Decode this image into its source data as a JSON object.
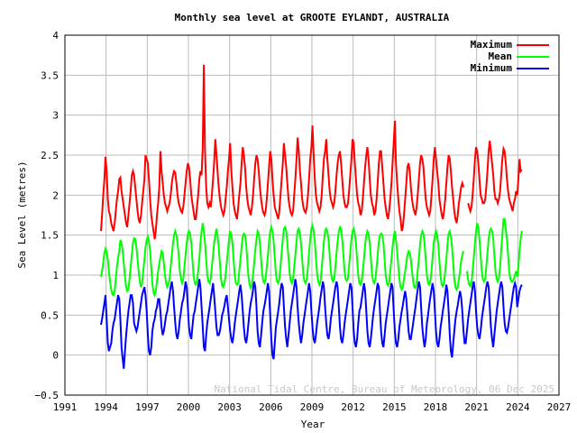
{
  "chart_data": {
    "type": "line",
    "title": "Monthly sea level at GROOTE EYLANDT, AUSTRALIA",
    "xlabel": "Year",
    "ylabel": "Sea Level (metres)",
    "xlim": [
      1991,
      2027
    ],
    "ylim": [
      -0.5,
      4
    ],
    "x_ticks": [
      "1991",
      "1994",
      "1997",
      "2000",
      "2003",
      "2006",
      "2009",
      "2012",
      "2015",
      "2018",
      "2021",
      "2024",
      "2027"
    ],
    "y_ticks": [
      "−0.5",
      "0",
      "0.5",
      "1",
      "1.5",
      "2",
      "2.5",
      "3",
      "3.5",
      "4"
    ],
    "grid": true,
    "legend_position": "top-right",
    "footer": "National Tidal Centre, Bureau of Meteorology, 06 Dec 2025",
    "start_month": "1993-08",
    "interval": "monthly",
    "series": [
      {
        "name": "Maximum",
        "color": "#ff0000",
        "values": [
          1.55,
          1.75,
          2.0,
          2.2,
          2.48,
          2.3,
          1.95,
          1.8,
          1.75,
          1.65,
          1.6,
          1.55,
          1.65,
          1.8,
          1.95,
          2.05,
          2.2,
          2.22,
          2.05,
          1.95,
          1.85,
          1.75,
          1.65,
          1.6,
          1.75,
          1.9,
          2.05,
          2.25,
          2.3,
          2.25,
          2.1,
          1.95,
          1.8,
          1.7,
          1.65,
          1.75,
          1.9,
          2.05,
          2.2,
          2.5,
          2.45,
          2.4,
          2.2,
          1.95,
          1.75,
          1.65,
          1.55,
          1.45,
          1.55,
          1.75,
          1.9,
          2.1,
          2.55,
          2.3,
          2.15,
          2.0,
          1.9,
          1.85,
          1.8,
          1.85,
          1.9,
          2.0,
          2.15,
          2.25,
          2.3,
          2.28,
          2.15,
          2.0,
          1.9,
          1.85,
          1.8,
          1.78,
          1.85,
          2.0,
          2.15,
          2.3,
          2.4,
          2.35,
          2.2,
          2.0,
          1.9,
          1.8,
          1.7,
          1.7,
          1.85,
          2.0,
          2.2,
          2.3,
          2.25,
          2.6,
          3.63,
          2.55,
          2.1,
          1.9,
          1.85,
          1.9,
          1.85,
          2.0,
          2.2,
          2.4,
          2.7,
          2.5,
          2.3,
          2.1,
          1.95,
          1.85,
          1.8,
          1.75,
          1.8,
          1.95,
          2.1,
          2.3,
          2.45,
          2.65,
          2.3,
          2.1,
          1.9,
          1.8,
          1.75,
          1.7,
          1.85,
          2.0,
          2.15,
          2.4,
          2.6,
          2.5,
          2.35,
          2.1,
          1.95,
          1.85,
          1.8,
          1.75,
          1.85,
          2.0,
          2.2,
          2.4,
          2.5,
          2.45,
          2.3,
          2.1,
          1.95,
          1.85,
          1.78,
          1.75,
          1.8,
          1.95,
          2.15,
          2.35,
          2.55,
          2.45,
          2.2,
          2.0,
          1.85,
          1.8,
          1.75,
          1.7,
          1.8,
          2.0,
          2.2,
          2.4,
          2.65,
          2.5,
          2.35,
          2.15,
          1.95,
          1.85,
          1.78,
          1.75,
          1.8,
          2.0,
          2.2,
          2.45,
          2.72,
          2.55,
          2.3,
          2.15,
          1.95,
          1.85,
          1.8,
          1.78,
          1.85,
          2.0,
          2.2,
          2.45,
          2.6,
          2.87,
          2.5,
          2.2,
          2.0,
          1.9,
          1.85,
          1.8,
          1.85,
          2.0,
          2.25,
          2.45,
          2.55,
          2.7,
          2.45,
          2.25,
          2.05,
          1.95,
          1.9,
          1.85,
          1.9,
          2.05,
          2.25,
          2.4,
          2.5,
          2.55,
          2.4,
          2.2,
          2.0,
          1.9,
          1.85,
          1.85,
          1.9,
          2.05,
          2.25,
          2.45,
          2.7,
          2.65,
          2.4,
          2.2,
          2.0,
          1.9,
          1.85,
          1.75,
          1.8,
          1.95,
          2.15,
          2.35,
          2.5,
          2.6,
          2.45,
          2.2,
          2.0,
          1.9,
          1.85,
          1.75,
          1.8,
          1.95,
          2.15,
          2.4,
          2.55,
          2.55,
          2.35,
          2.15,
          1.95,
          1.85,
          1.75,
          1.7,
          1.8,
          1.95,
          2.15,
          2.4,
          2.65,
          2.93,
          2.4,
          2.15,
          1.95,
          1.8,
          1.7,
          1.55,
          1.6,
          1.75,
          1.95,
          2.15,
          2.35,
          2.4,
          2.3,
          2.1,
          1.95,
          1.85,
          1.8,
          1.75,
          1.85,
          2.0,
          2.2,
          2.4,
          2.5,
          2.45,
          2.35,
          2.15,
          1.95,
          1.85,
          1.8,
          1.75,
          1.8,
          2.0,
          2.2,
          2.45,
          2.6,
          2.45,
          2.3,
          2.15,
          1.95,
          1.85,
          1.75,
          1.7,
          1.8,
          1.95,
          2.15,
          2.35,
          2.5,
          2.45,
          2.3,
          2.1,
          1.95,
          1.8,
          1.7,
          1.65,
          1.75,
          1.9,
          2.0,
          2.1,
          2.15,
          2.1,
          null,
          null,
          null,
          1.9,
          1.85,
          1.8,
          1.85,
          2.0,
          2.2,
          2.45,
          2.6,
          2.55,
          2.4,
          2.2,
          2.0,
          1.95,
          1.9,
          1.9,
          1.95,
          2.1,
          2.3,
          2.55,
          2.68,
          2.55,
          2.4,
          2.25,
          2.05,
          1.95,
          1.95,
          1.9,
          1.95,
          2.05,
          2.25,
          2.45,
          2.58,
          2.55,
          2.4,
          2.2,
          2.05,
          1.95,
          1.9,
          1.85,
          1.8,
          1.9,
          1.95,
          2.05,
          2.0,
          2.2,
          2.45,
          2.3,
          2.32
        ]
      },
      {
        "name": "Mean",
        "color": "#00ff00",
        "values": [
          0.98,
          1.05,
          1.15,
          1.28,
          1.33,
          1.3,
          1.2,
          1.05,
          0.92,
          0.82,
          0.76,
          0.75,
          0.8,
          0.95,
          1.1,
          1.22,
          1.3,
          1.44,
          1.4,
          1.3,
          1.15,
          0.98,
          0.85,
          0.8,
          0.82,
          0.95,
          1.1,
          1.25,
          1.4,
          1.46,
          1.45,
          1.35,
          1.2,
          1.05,
          0.92,
          0.85,
          0.9,
          1.05,
          1.2,
          1.35,
          1.44,
          1.48,
          1.42,
          1.3,
          1.1,
          0.9,
          0.78,
          0.75,
          0.8,
          0.92,
          1.05,
          1.15,
          1.22,
          1.3,
          1.28,
          1.15,
          1.0,
          0.9,
          0.85,
          0.88,
          0.95,
          1.1,
          1.25,
          1.4,
          1.5,
          1.55,
          1.5,
          1.4,
          1.25,
          1.05,
          0.95,
          0.9,
          0.95,
          1.1,
          1.25,
          1.4,
          1.52,
          1.55,
          1.52,
          1.4,
          1.2,
          1.0,
          0.9,
          0.88,
          0.92,
          1.05,
          1.2,
          1.4,
          1.55,
          1.65,
          1.55,
          1.4,
          1.2,
          1.0,
          0.92,
          0.9,
          0.95,
          1.1,
          1.25,
          1.4,
          1.5,
          1.58,
          1.5,
          1.35,
          1.15,
          0.95,
          0.87,
          0.85,
          0.9,
          1.0,
          1.15,
          1.3,
          1.45,
          1.55,
          1.5,
          1.4,
          1.2,
          1.0,
          0.9,
          0.88,
          0.9,
          1.05,
          1.2,
          1.35,
          1.48,
          1.52,
          1.5,
          1.38,
          1.18,
          0.98,
          0.88,
          0.84,
          0.88,
          1.0,
          1.15,
          1.32,
          1.45,
          1.55,
          1.52,
          1.4,
          1.2,
          1.02,
          0.92,
          0.9,
          0.95,
          1.1,
          1.25,
          1.42,
          1.55,
          1.6,
          1.55,
          1.42,
          1.22,
          1.02,
          0.92,
          0.9,
          0.95,
          1.1,
          1.28,
          1.45,
          1.58,
          1.6,
          1.55,
          1.4,
          1.22,
          1.02,
          0.93,
          0.9,
          0.95,
          1.1,
          1.25,
          1.42,
          1.55,
          1.58,
          1.52,
          1.4,
          1.2,
          1.0,
          0.92,
          0.9,
          0.95,
          1.1,
          1.28,
          1.45,
          1.58,
          1.62,
          1.55,
          1.42,
          1.22,
          1.02,
          0.92,
          0.88,
          0.92,
          1.08,
          1.25,
          1.42,
          1.55,
          1.58,
          1.55,
          1.45,
          1.25,
          1.05,
          0.95,
          0.92,
          0.95,
          1.1,
          1.28,
          1.42,
          1.55,
          1.6,
          1.58,
          1.45,
          1.25,
          1.05,
          0.95,
          0.93,
          0.96,
          1.12,
          1.28,
          1.45,
          1.55,
          1.58,
          1.52,
          1.4,
          1.2,
          1.0,
          0.9,
          0.88,
          0.92,
          1.05,
          1.2,
          1.38,
          1.5,
          1.55,
          1.52,
          1.4,
          1.22,
          1.02,
          0.92,
          0.9,
          0.95,
          1.1,
          1.25,
          1.42,
          1.5,
          1.52,
          1.5,
          1.4,
          1.2,
          1.0,
          0.9,
          0.87,
          0.9,
          1.05,
          1.2,
          1.35,
          1.48,
          1.55,
          1.45,
          1.3,
          1.12,
          0.95,
          0.85,
          0.82,
          0.85,
          0.95,
          1.05,
          1.15,
          1.25,
          1.3,
          1.28,
          1.2,
          1.05,
          0.92,
          0.85,
          0.84,
          0.9,
          1.05,
          1.2,
          1.38,
          1.5,
          1.55,
          1.52,
          1.4,
          1.2,
          1.0,
          0.9,
          0.88,
          0.92,
          1.05,
          1.22,
          1.4,
          1.5,
          1.55,
          1.5,
          1.38,
          1.18,
          0.98,
          0.88,
          0.86,
          0.9,
          1.05,
          1.2,
          1.38,
          1.52,
          1.55,
          1.48,
          1.35,
          1.15,
          0.95,
          0.85,
          0.82,
          0.85,
          0.95,
          1.05,
          1.18,
          1.25,
          1.3,
          null,
          null,
          1.05,
          0.95,
          0.88,
          0.86,
          0.9,
          1.05,
          1.22,
          1.4,
          1.55,
          1.65,
          1.6,
          1.45,
          1.25,
          1.05,
          0.95,
          0.92,
          0.95,
          1.1,
          1.28,
          1.45,
          1.55,
          1.58,
          1.55,
          1.45,
          1.25,
          1.05,
          0.95,
          0.92,
          0.96,
          1.1,
          1.3,
          1.5,
          1.7,
          1.7,
          1.58,
          1.45,
          1.25,
          1.05,
          0.95,
          0.92,
          0.92,
          0.95,
          1.0,
          1.05,
          0.98,
          1.1,
          1.3,
          1.45,
          1.55
        ]
      },
      {
        "name": "Minimum",
        "color": "#0000ff",
        "values": [
          0.38,
          0.45,
          0.55,
          0.65,
          0.75,
          0.45,
          0.15,
          0.05,
          0.1,
          0.15,
          0.3,
          0.4,
          0.45,
          0.55,
          0.65,
          0.75,
          0.7,
          0.45,
          0.1,
          -0.05,
          -0.17,
          0.05,
          0.25,
          0.4,
          0.55,
          0.65,
          0.75,
          0.75,
          0.65,
          0.4,
          0.35,
          0.3,
          0.35,
          0.45,
          0.55,
          0.65,
          0.75,
          0.8,
          0.85,
          0.75,
          0.55,
          0.25,
          0.05,
          0.0,
          0.1,
          0.3,
          0.4,
          0.45,
          0.55,
          0.6,
          0.7,
          0.7,
          0.55,
          0.35,
          0.25,
          0.3,
          0.4,
          0.5,
          0.55,
          0.65,
          0.75,
          0.85,
          0.92,
          0.8,
          0.6,
          0.4,
          0.25,
          0.2,
          0.3,
          0.45,
          0.55,
          0.65,
          0.7,
          0.8,
          0.92,
          0.85,
          0.6,
          0.35,
          0.25,
          0.2,
          0.35,
          0.5,
          0.55,
          0.65,
          0.75,
          0.85,
          0.95,
          0.85,
          0.6,
          0.35,
          0.1,
          0.05,
          0.25,
          0.4,
          0.5,
          0.6,
          0.7,
          0.8,
          0.9,
          0.75,
          0.55,
          0.35,
          0.25,
          0.25,
          0.3,
          0.4,
          0.5,
          0.55,
          0.62,
          0.7,
          0.75,
          0.6,
          0.45,
          0.3,
          0.2,
          0.15,
          0.25,
          0.4,
          0.5,
          0.6,
          0.7,
          0.8,
          0.88,
          0.75,
          0.55,
          0.35,
          0.2,
          0.15,
          0.25,
          0.4,
          0.55,
          0.65,
          0.72,
          0.82,
          0.92,
          0.85,
          0.6,
          0.3,
          0.15,
          0.1,
          0.25,
          0.4,
          0.55,
          0.62,
          0.7,
          0.8,
          0.9,
          0.8,
          0.5,
          0.2,
          0.0,
          -0.05,
          0.15,
          0.35,
          0.45,
          0.55,
          0.65,
          0.8,
          0.9,
          0.85,
          0.6,
          0.35,
          0.2,
          0.1,
          0.25,
          0.4,
          0.55,
          0.65,
          0.75,
          0.85,
          0.95,
          0.85,
          0.6,
          0.4,
          0.25,
          0.15,
          0.25,
          0.4,
          0.5,
          0.6,
          0.7,
          0.8,
          0.9,
          0.8,
          0.55,
          0.35,
          0.2,
          0.15,
          0.25,
          0.4,
          0.5,
          0.6,
          0.72,
          0.82,
          0.92,
          0.85,
          0.6,
          0.4,
          0.25,
          0.2,
          0.3,
          0.45,
          0.55,
          0.65,
          0.75,
          0.85,
          0.92,
          0.85,
          0.6,
          0.35,
          0.2,
          0.15,
          0.25,
          0.4,
          0.5,
          0.6,
          0.7,
          0.8,
          0.9,
          0.85,
          0.6,
          0.3,
          0.15,
          0.1,
          0.2,
          0.4,
          0.55,
          0.6,
          0.7,
          0.8,
          0.9,
          0.8,
          0.55,
          0.3,
          0.15,
          0.1,
          0.2,
          0.35,
          0.5,
          0.6,
          0.7,
          0.8,
          0.9,
          0.85,
          0.55,
          0.3,
          0.15,
          0.1,
          0.25,
          0.4,
          0.5,
          0.6,
          0.7,
          0.8,
          0.9,
          0.85,
          0.55,
          0.3,
          0.15,
          0.1,
          0.2,
          0.35,
          0.45,
          0.55,
          0.62,
          0.72,
          0.8,
          0.7,
          0.5,
          0.3,
          0.2,
          0.2,
          0.3,
          0.4,
          0.5,
          0.6,
          0.72,
          0.82,
          0.92,
          0.85,
          0.6,
          0.35,
          0.2,
          0.1,
          0.2,
          0.4,
          0.5,
          0.62,
          0.72,
          0.82,
          0.9,
          0.8,
          0.55,
          0.3,
          0.15,
          0.1,
          0.2,
          0.35,
          0.45,
          0.55,
          0.65,
          0.75,
          0.88,
          0.8,
          0.55,
          0.25,
          0.05,
          -0.03,
          0.15,
          0.3,
          0.45,
          0.55,
          0.62,
          0.72,
          0.8,
          0.72,
          0.55,
          0.3,
          0.15,
          0.15,
          0.3,
          0.45,
          0.55,
          0.65,
          0.75,
          0.85,
          0.92,
          0.8,
          0.55,
          0.35,
          0.25,
          0.2,
          0.3,
          0.45,
          0.55,
          0.65,
          0.75,
          0.85,
          0.92,
          0.85,
          0.6,
          0.35,
          0.2,
          0.1,
          0.25,
          0.4,
          0.55,
          0.65,
          0.75,
          0.85,
          0.92,
          0.85,
          0.6,
          0.4,
          0.3,
          0.28,
          0.35,
          0.45,
          0.55,
          0.65,
          0.75,
          0.85,
          0.9,
          0.85,
          0.6,
          0.7,
          0.8,
          0.85,
          0.88
        ]
      }
    ]
  }
}
